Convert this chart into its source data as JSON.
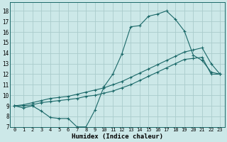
{
  "xlabel": "Humidex (Indice chaleur)",
  "background_color": "#cce8e8",
  "grid_color": "#aacccc",
  "line_color": "#1a6868",
  "xlim": [
    -0.5,
    23.5
  ],
  "ylim": [
    7,
    18.8
  ],
  "yticks": [
    7,
    8,
    9,
    10,
    11,
    12,
    13,
    14,
    15,
    16,
    17,
    18
  ],
  "xticks": [
    0,
    1,
    2,
    3,
    4,
    5,
    6,
    7,
    8,
    9,
    10,
    11,
    12,
    13,
    14,
    15,
    16,
    17,
    18,
    19,
    20,
    21,
    22,
    23
  ],
  "series": [
    [
      9.0,
      8.8,
      9.0,
      8.5,
      7.9,
      7.8,
      7.8,
      7.0,
      7.0,
      8.6,
      10.8,
      12.0,
      13.9,
      16.5,
      16.6,
      17.5,
      17.7,
      18.0,
      17.2,
      16.1,
      13.8,
      13.3,
      12.2,
      12.0
    ],
    [
      9.0,
      9.0,
      9.1,
      9.3,
      9.4,
      9.5,
      9.6,
      9.7,
      9.9,
      10.0,
      10.2,
      10.4,
      10.7,
      11.0,
      11.4,
      11.8,
      12.2,
      12.6,
      13.0,
      13.4,
      13.5,
      13.6,
      12.0,
      12.0
    ],
    [
      9.0,
      9.1,
      9.3,
      9.5,
      9.7,
      9.8,
      9.9,
      10.1,
      10.3,
      10.5,
      10.7,
      11.0,
      11.3,
      11.7,
      12.1,
      12.5,
      12.9,
      13.3,
      13.7,
      14.1,
      14.3,
      14.5,
      13.0,
      12.0
    ]
  ]
}
